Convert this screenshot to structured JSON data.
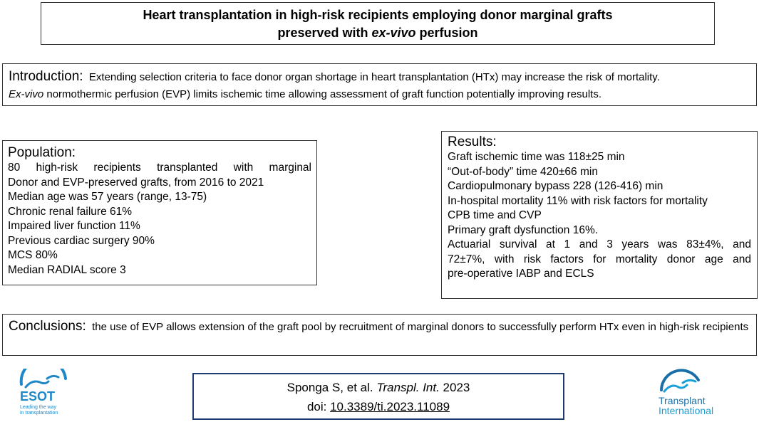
{
  "title": {
    "line1": "Heart transplantation in high-risk recipients employing donor marginal grafts",
    "line2_pre": "preserved with ",
    "line2_em": "ex-vivo",
    "line2_post": " perfusion"
  },
  "introduction": {
    "heading": "Introduction:",
    "text1": "Extending selection criteria to face donor organ shortage in heart transplantation (HTx) may increase the risk of mortality.",
    "text2_em": "Ex-vivo",
    "text2": " normothermic perfusion (EVP) limits ischemic time allowing assessment of graft function potentially improving results."
  },
  "population": {
    "heading": "Population:",
    "lines_just": [
      "80 high-risk recipients transplanted with marginal",
      "Donor and EVP-preserved grafts, from 2016 to 2021"
    ],
    "lines": [
      "Median age was 57 years (range, 13-75)",
      "Chronic renal failure 61%",
      "Impaired liver function 11%",
      "Previous cardiac surgery 90%",
      "MCS 80%",
      "Median RADIAL score 3"
    ]
  },
  "results": {
    "heading": "Results:",
    "lines": [
      "Graft ischemic time was 118±25 min",
      "“Out-of-body” time 420±66 min",
      "Cardiopulmonary bypass 228 (126-416) min",
      "In-hospital mortality 11% with risk factors for mortality",
      "CPB time and CVP",
      "Primary graft dysfunction 16%."
    ],
    "lines_just": [
      "Actuarial survival at 1 and 3 years was 83±4%, and",
      "72±7%, with risk factors for mortality donor age and"
    ],
    "last_line": "pre-operative IABP and ECLS"
  },
  "conclusions": {
    "heading": "Conclusions:",
    "text": "the use of EVP allows extension of the graft pool by recruitment of marginal donors to successfully perform HTx even in high-risk recipients"
  },
  "citation": {
    "authors": "Sponga S, et al. ",
    "journal": "Transpl. Int.",
    "year": " 2023",
    "doi_label": "doi: ",
    "doi": "10.3389/ti.2023.11089"
  },
  "logos": {
    "esot_name": "ESOT",
    "esot_tagline1": "Leading the way",
    "esot_tagline2": "in transplantation",
    "ti_name1": "Transplant",
    "ti_name2": "International",
    "esot_color": "#1e88c9",
    "ti_color": "#1aa0d8"
  }
}
